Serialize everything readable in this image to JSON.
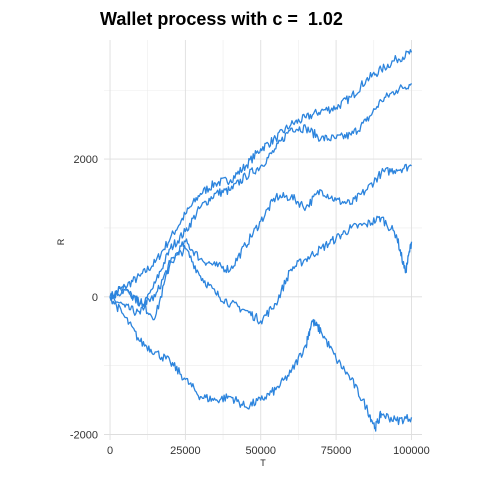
{
  "chart_data": {
    "type": "line",
    "title": "Wallet process with c =  1.02",
    "xlabel": "T",
    "ylabel": "R",
    "xlim": [
      -2000,
      103500
    ],
    "ylim": [
      -2080,
      3730
    ],
    "x_ticks": [
      0,
      25000,
      50000,
      75000,
      100000
    ],
    "x_tick_labels": [
      "0",
      "25000",
      "50000",
      "75000",
      "100000"
    ],
    "y_ticks": [
      -2000,
      0,
      2000
    ],
    "y_tick_labels": [
      "-2000",
      "0",
      "2000"
    ],
    "x_minor_ticks": [
      12500,
      37500,
      62500,
      87500
    ],
    "y_minor_ticks": [
      -1000,
      1000,
      3000
    ],
    "grid": true,
    "line_color": "#2C84DD",
    "series": [
      {
        "x": [
          0,
          5000,
          10000,
          15000,
          20000,
          25000,
          30000,
          35000,
          40000,
          45000,
          50000,
          55000,
          60000,
          65000,
          70000,
          75000,
          80000,
          85000,
          90000,
          95000,
          100000
        ],
        "values": [
          0,
          150,
          300,
          500,
          850,
          1200,
          1500,
          1650,
          1700,
          1900,
          2150,
          2300,
          2500,
          2600,
          2700,
          2750,
          2900,
          3150,
          3300,
          3450,
          3550
        ]
      },
      {
        "x": [
          0,
          5000,
          10000,
          15000,
          20000,
          25000,
          30000,
          35000,
          40000,
          45000,
          50000,
          55000,
          60000,
          65000,
          70000,
          75000,
          80000,
          85000,
          90000,
          95000,
          100000
        ],
        "values": [
          0,
          -150,
          -250,
          200,
          700,
          950,
          1300,
          1500,
          1550,
          1750,
          1900,
          2150,
          2450,
          2450,
          2300,
          2300,
          2350,
          2550,
          2850,
          3000,
          3100
        ]
      },
      {
        "x": [
          0,
          5000,
          10000,
          15000,
          20000,
          25000,
          30000,
          35000,
          40000,
          45000,
          50000,
          55000,
          60000,
          65000,
          70000,
          75000,
          80000,
          85000,
          90000,
          95000,
          100000
        ],
        "values": [
          0,
          100,
          -100,
          0,
          500,
          800,
          550,
          450,
          400,
          750,
          1100,
          1450,
          1450,
          1300,
          1550,
          1400,
          1350,
          1550,
          1800,
          1850,
          1900
        ]
      },
      {
        "x": [
          0,
          5000,
          10000,
          15000,
          20000,
          25000,
          30000,
          35000,
          40000,
          45000,
          50000,
          55000,
          60000,
          65000,
          70000,
          75000,
          80000,
          85000,
          90000,
          95000,
          98000,
          100000
        ],
        "values": [
          0,
          150,
          -100,
          -300,
          500,
          700,
          300,
          50,
          -100,
          -200,
          -350,
          -100,
          400,
          550,
          700,
          850,
          1000,
          1050,
          1150,
          900,
          350,
          800
        ]
      },
      {
        "x": [
          0,
          5000,
          10000,
          15000,
          20000,
          25000,
          30000,
          35000,
          40000,
          45000,
          50000,
          55000,
          60000,
          65000,
          67000,
          70000,
          75000,
          80000,
          85000,
          88000,
          90000,
          95000,
          100000
        ],
        "values": [
          0,
          -300,
          -650,
          -800,
          -950,
          -1200,
          -1450,
          -1500,
          -1450,
          -1600,
          -1500,
          -1350,
          -1100,
          -700,
          -350,
          -500,
          -900,
          -1200,
          -1600,
          -1900,
          -1700,
          -1800,
          -1750
        ]
      }
    ]
  }
}
